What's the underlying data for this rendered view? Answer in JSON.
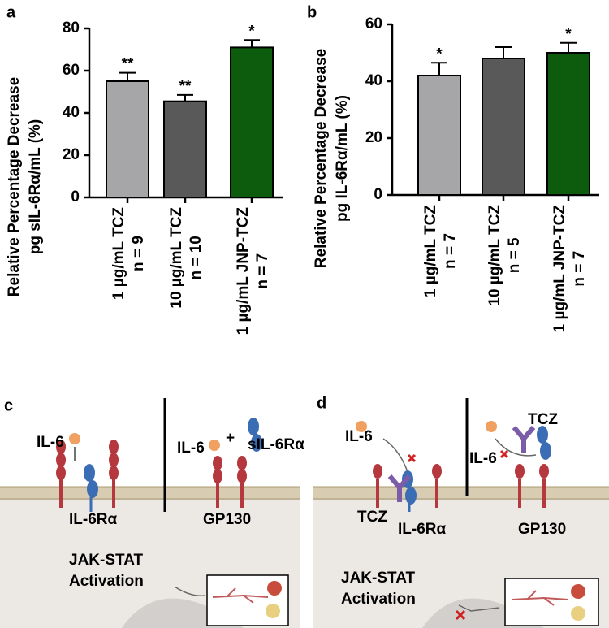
{
  "chart_data": [
    {
      "type": "bar",
      "panel": "a",
      "ylabel": [
        "Relative Percentage Decrease",
        "pg sIL-6Rα/mL (%)"
      ],
      "categories": [
        "1 µg/mL TCZ",
        "10 µg/mL TCZ",
        "1 µg/mL JNP-TCZ"
      ],
      "sample_sizes": [
        "n = 9",
        "n = 10",
        "n = 7"
      ],
      "values": [
        55,
        45.5,
        71
      ],
      "errors": [
        4,
        3,
        3.5
      ],
      "significance": [
        "**",
        "**",
        "*"
      ],
      "colors": [
        "#a6a6a8",
        "#595959",
        "#0d5c0d"
      ],
      "ylim": [
        0,
        80
      ],
      "yticks": [
        0,
        20,
        40,
        60,
        80
      ]
    },
    {
      "type": "bar",
      "panel": "b",
      "ylabel": [
        "Relative Percentage Decrease",
        "pg IL-6Rα/mL (%)"
      ],
      "categories": [
        "1 µg/mL TCZ",
        "10 µg/mL TCZ",
        "1 µg/mL JNP-TCZ"
      ],
      "sample_sizes": [
        "n = 7",
        "n = 5",
        "n = 7"
      ],
      "values": [
        42,
        48,
        50
      ],
      "errors": [
        4.5,
        4,
        3.5
      ],
      "significance": [
        "*",
        null,
        "*"
      ],
      "colors": [
        "#a6a6a8",
        "#595959",
        "#0d5c0d"
      ],
      "ylim": [
        0,
        60
      ],
      "yticks": [
        0,
        20,
        40,
        60
      ]
    }
  ],
  "diagrams": {
    "c": {
      "panel": "c",
      "il6_left": "IL-6",
      "il6_right": "IL-6",
      "plus": "+",
      "sil6r": "sIL-6Rα",
      "il6r": "IL-6Rα",
      "gp130": "GP130",
      "activation": [
        "JAK-STAT",
        "Activation"
      ]
    },
    "d": {
      "panel": "d",
      "il6_left": "IL-6",
      "il6_right": "IL-6",
      "tcz_top": "TCZ",
      "tcz_bottom": "TCZ",
      "il6r": "IL-6Rα",
      "gp130": "GP130",
      "activation": [
        "JAK-STAT",
        "Activation"
      ]
    }
  }
}
